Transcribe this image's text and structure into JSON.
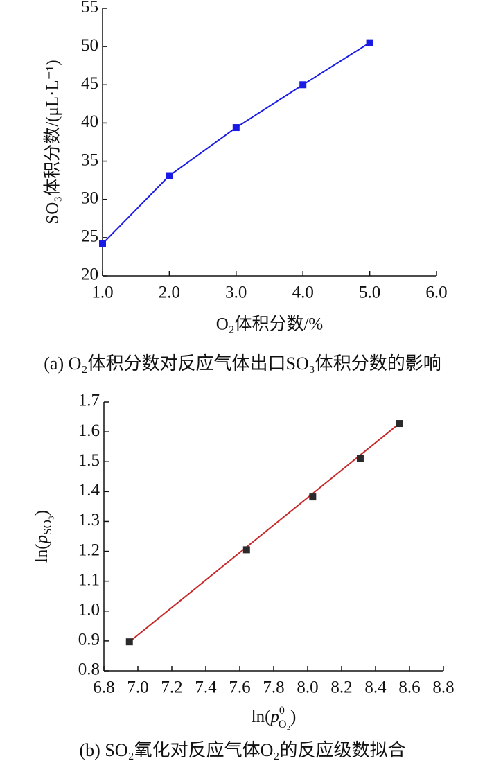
{
  "chart_data": [
    {
      "type": "line",
      "title": "(a) O₂体积分数对反应气体出口SO₃体积分数的影响",
      "xlabel": "O₂体积分数/%",
      "ylabel": "SO₃体积分数/(μL·L⁻¹)",
      "x": [
        1,
        2,
        3,
        4,
        5
      ],
      "values": [
        24.2,
        33.1,
        39.4,
        45,
        50.5
      ],
      "color": "#1a1ae6",
      "xlim": [
        1,
        6
      ],
      "xticks": [
        {
          "value": 1,
          "label": "1.0"
        },
        {
          "value": 2,
          "label": "2.0"
        },
        {
          "value": 3,
          "label": "3.0"
        },
        {
          "value": 4,
          "label": "4.0"
        },
        {
          "value": 5,
          "label": "5.0"
        },
        {
          "value": 6,
          "label": "6.0"
        }
      ],
      "ylim": [
        20,
        55
      ],
      "yticks": [
        20,
        25,
        30,
        35,
        40,
        45,
        50,
        55
      ]
    },
    {
      "type": "scatter",
      "title": "(b) SO₂氧化对反应气体O₂的反应级数拟合",
      "xlabel": [
        "ln(",
        "p",
        "0",
        "O₂",
        ")"
      ],
      "ylabel": [
        "ln(",
        "p",
        "SO₃",
        ")"
      ],
      "x": [
        6.95,
        7.64,
        8.03,
        8.31,
        8.54
      ],
      "values": [
        0.897,
        1.205,
        1.382,
        1.512,
        1.628
      ],
      "color": "#2a2a2a",
      "fit": {
        "x": [
          6.95,
          8.54
        ],
        "values": [
          0.897,
          1.628
        ],
        "color": "#c62828"
      },
      "xlim": [
        6.8,
        8.8
      ],
      "xticks": [
        6.8,
        {
          "value": 7,
          "label": "7.0"
        },
        7.2,
        7.4,
        7.6,
        7.8,
        {
          "value": 8,
          "label": "8.0"
        },
        8.2,
        8.4,
        8.6,
        8.8
      ],
      "ylim": [
        0.8,
        1.7
      ],
      "yticks": [
        0.8,
        0.9,
        {
          "value": 1,
          "label": "1.0"
        },
        1.1,
        1.2,
        1.3,
        1.4,
        1.5,
        1.6,
        1.7
      ]
    }
  ]
}
